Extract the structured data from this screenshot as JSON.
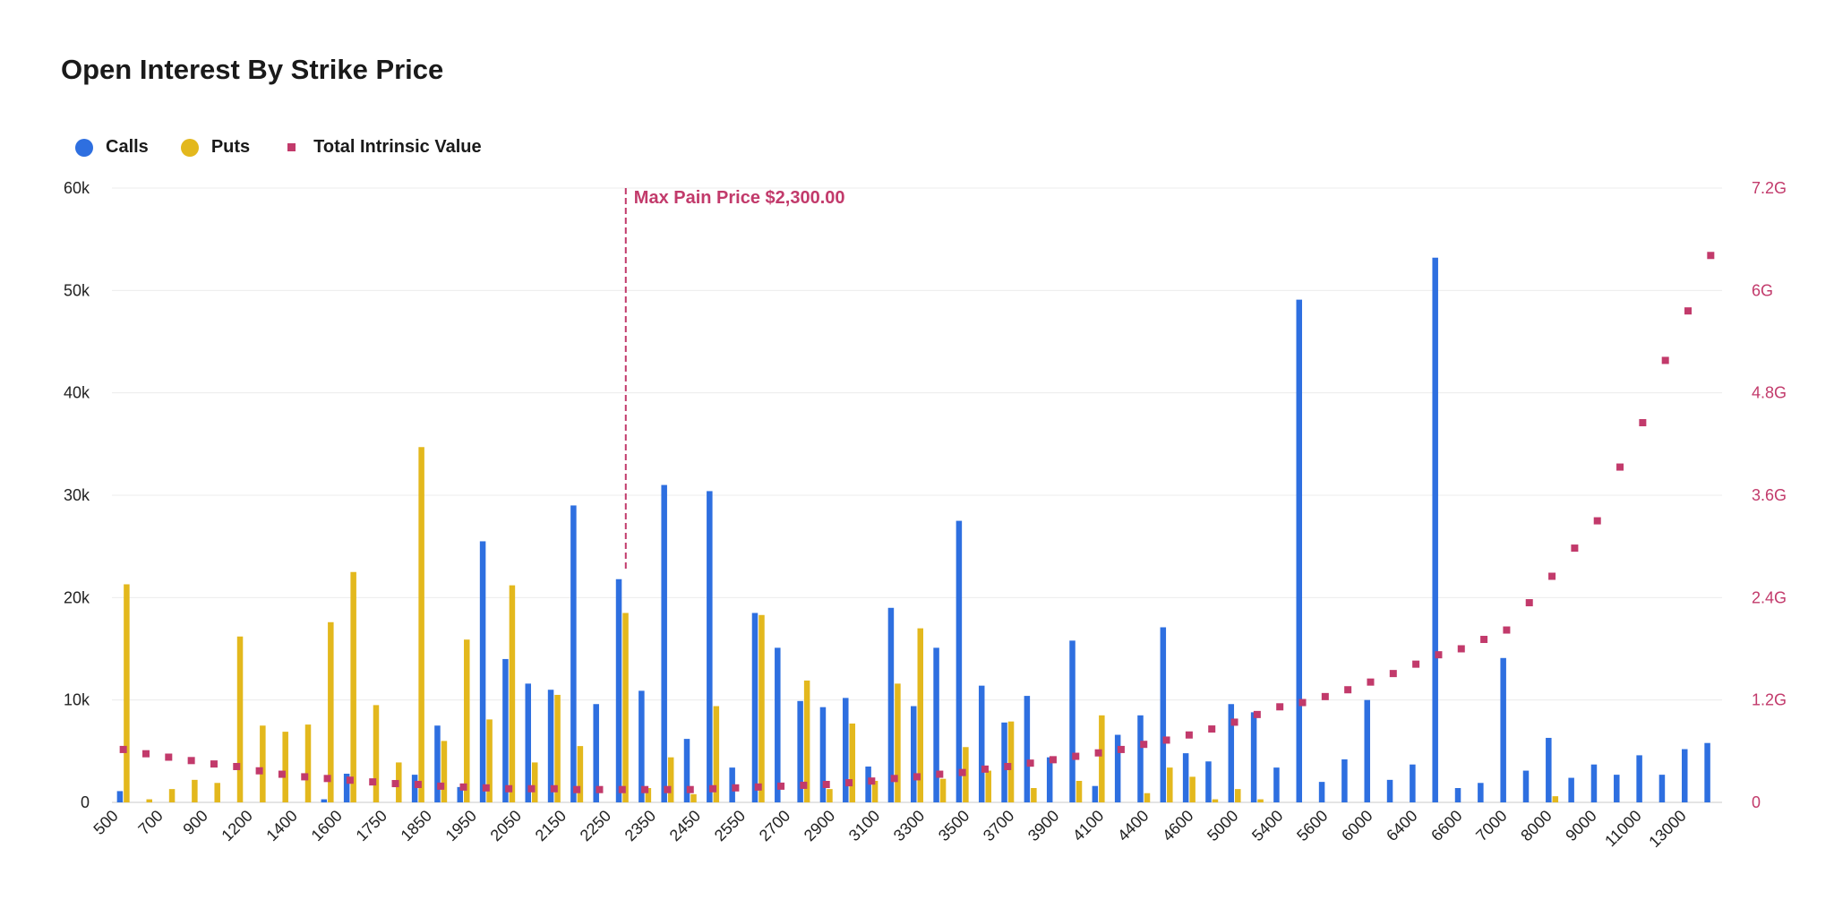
{
  "chart_data": {
    "type": "bar",
    "title": "Open Interest By Strike Price",
    "legend": {
      "position": "top-left"
    },
    "colors": {
      "calls": "#2e6fe0",
      "puts": "#e3b81d",
      "intrinsic": "#c23a6b"
    },
    "series": [
      {
        "name": "Calls",
        "type": "bar",
        "axis": "left",
        "values": [
          1100,
          0,
          0,
          0,
          0,
          0,
          0,
          0,
          0,
          300,
          2800,
          0,
          0,
          2700,
          7500,
          1500,
          25500,
          14000,
          11600,
          11000,
          29000,
          9600,
          21800,
          10900,
          31000,
          6200,
          30400,
          3400,
          18500,
          15100,
          9900,
          9300,
          10200,
          3500,
          19000,
          9400,
          15100,
          27500,
          11400,
          7800,
          10400,
          4400,
          15800,
          1600,
          6600,
          8500,
          17100,
          4800,
          4000,
          9600,
          8800,
          3400,
          49100,
          2000,
          4200,
          10000,
          2200,
          3700,
          53200,
          1400,
          1900,
          14100,
          3100,
          6300,
          2400,
          3700,
          2700,
          4600,
          2700,
          5200,
          5800
        ]
      },
      {
        "name": "Puts",
        "type": "bar",
        "axis": "left",
        "values": [
          21300,
          300,
          1300,
          2200,
          1900,
          16200,
          7500,
          6900,
          7600,
          17600,
          22500,
          9500,
          3900,
          34700,
          6000,
          15900,
          8100,
          21200,
          3900,
          10500,
          5500,
          0,
          18500,
          1400,
          4400,
          800,
          9400,
          0,
          18300,
          0,
          11900,
          1300,
          7700,
          2100,
          11600,
          17000,
          2300,
          5400,
          3100,
          7900,
          1400,
          0,
          2100,
          8500,
          0,
          900,
          3400,
          2500,
          300,
          1300,
          300,
          0,
          0,
          0,
          0,
          0,
          0,
          0,
          0,
          0,
          0,
          0,
          0,
          600,
          0,
          0,
          0,
          0,
          0,
          0,
          0
        ]
      },
      {
        "name": "Total Intrinsic Value",
        "type": "scatter",
        "axis": "right",
        "values": [
          0.62,
          0.57,
          0.53,
          0.49,
          0.45,
          0.42,
          0.37,
          0.33,
          0.3,
          0.28,
          0.26,
          0.24,
          0.22,
          0.21,
          0.19,
          0.18,
          0.17,
          0.16,
          0.16,
          0.16,
          0.15,
          0.15,
          0.15,
          0.15,
          0.15,
          0.15,
          0.16,
          0.17,
          0.18,
          0.19,
          0.2,
          0.21,
          0.23,
          0.25,
          0.28,
          0.3,
          0.33,
          0.35,
          0.39,
          0.42,
          0.46,
          0.5,
          0.54,
          0.58,
          0.62,
          0.68,
          0.73,
          0.79,
          0.86,
          0.94,
          1.03,
          1.12,
          1.17,
          1.24,
          1.32,
          1.41,
          1.51,
          1.62,
          1.73,
          1.8,
          1.91,
          2.02,
          2.34,
          2.65,
          2.98,
          3.3,
          3.93,
          4.45,
          5.18,
          5.76,
          6.41
        ]
      }
    ],
    "x_tick_labels": [
      "500",
      "700",
      "900",
      "1200",
      "1400",
      "1600",
      "1750",
      "1850",
      "1950",
      "2050",
      "2150",
      "2250",
      "2350",
      "2450",
      "2550",
      "2700",
      "2900",
      "3100",
      "3300",
      "3500",
      "3700",
      "3900",
      "4100",
      "4400",
      "4600",
      "5000",
      "5400",
      "5600",
      "6000",
      "6400",
      "6600",
      "7000",
      "8000",
      "9000",
      "11000",
      "13000"
    ],
    "y_left": {
      "ticks": [
        "0",
        "10k",
        "20k",
        "30k",
        "40k",
        "50k",
        "60k"
      ],
      "ylim": [
        0,
        60000
      ]
    },
    "y_right": {
      "ticks": [
        "0",
        "1.2G",
        "2.4G",
        "3.6G",
        "4.8G",
        "6G",
        "7.2G"
      ],
      "ylim": [
        0,
        7.2
      ]
    },
    "max_pain": {
      "label": "Max Pain Price $2,300.00",
      "category_index": 22
    },
    "grid": true
  }
}
